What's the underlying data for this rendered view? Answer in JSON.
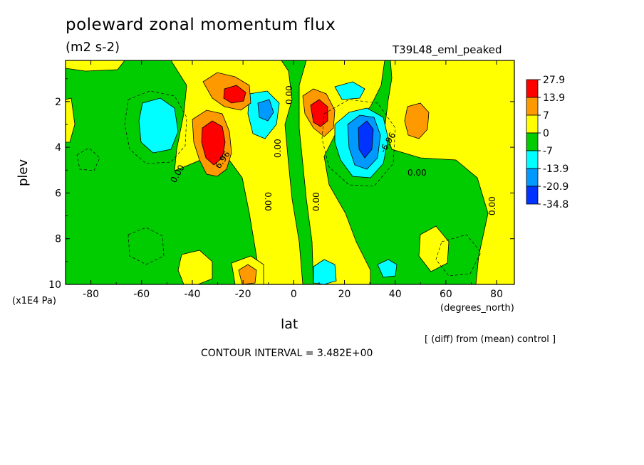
{
  "chart_data": {
    "type": "heatmap",
    "title": "poleward zonal momentum flux",
    "units": "(m2 s-2)",
    "run_label": "T39L48_eml_peaked",
    "xlabel": "lat",
    "x_unit_label": "(degrees_north)",
    "ylabel": "plev",
    "y_unit_label": "(x1E4 Pa)",
    "xlim": [
      -90,
      87
    ],
    "ylim": [
      0.2,
      10
    ],
    "y_inverted": true,
    "xticks": [
      -80,
      -60,
      -40,
      -20,
      0,
      20,
      40,
      60,
      80
    ],
    "yticks": [
      2,
      4,
      6,
      8,
      10
    ],
    "diff_note": "[ (diff) from (mean) control ]",
    "contour_interval_text": "CONTOUR INTERVAL = 3.482E+00",
    "contour_labels": [
      "0.00",
      "6.96",
      "-6.96"
    ],
    "colorbar": {
      "levels": [
        "27.9",
        "13.9",
        "7",
        "0",
        "-7",
        "-13.9",
        "-20.9",
        "-34.8"
      ],
      "colors": [
        "#ff0000",
        "#ff9900",
        "#ffff00",
        "#00cc00",
        "#00ffff",
        "#0099ff",
        "#0033ff"
      ]
    },
    "features": [
      {
        "lat": -32,
        "plev": 3.6,
        "value": 27.9,
        "sign": "positive max"
      },
      {
        "lat": -22,
        "plev": 1.7,
        "value": 27.9,
        "sign": "positive max"
      },
      {
        "lat": 12,
        "plev": 2.6,
        "value": 27.9,
        "sign": "positive max"
      },
      {
        "lat": 50,
        "plev": 3.0,
        "value": 13.9,
        "sign": "positive"
      },
      {
        "lat": 30,
        "plev": 3.5,
        "value": -34.8,
        "sign": "negative min"
      },
      {
        "lat": -50,
        "plev": 3.0,
        "value": -13.9,
        "sign": "negative"
      },
      {
        "lat": -10,
        "plev": 2.4,
        "value": -13.9,
        "sign": "negative"
      },
      {
        "lat": 22,
        "plev": 1.4,
        "value": -13.9,
        "sign": "negative"
      },
      {
        "lat": 13,
        "plev": 9.6,
        "value": -13.9,
        "sign": "negative"
      },
      {
        "lat": 38,
        "plev": 9.3,
        "value": -13.9,
        "sign": "negative"
      }
    ]
  }
}
